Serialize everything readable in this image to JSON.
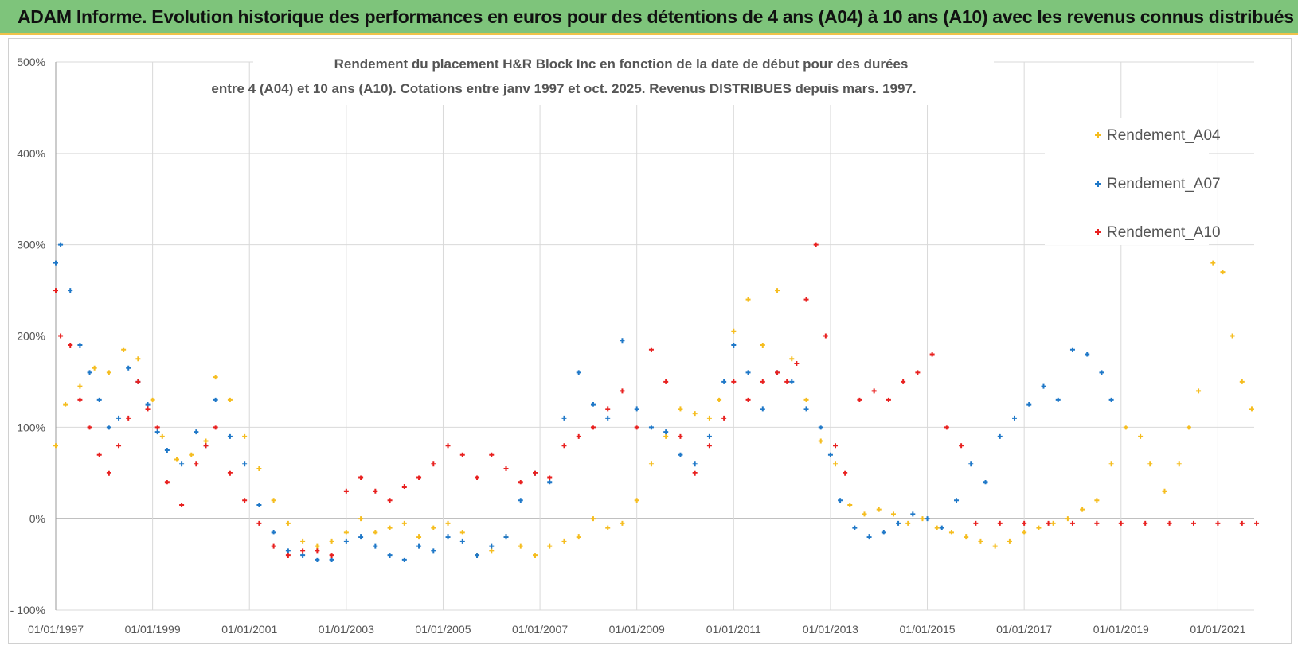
{
  "banner": {
    "title": "ADAM Informe. Evolution historique des performances en euros pour des détentions de 4 ans (A04) à 10 ans (A10) avec les revenus connus distribués"
  },
  "colors": {
    "banner_bg": "#7ec47b",
    "A04": "#f5bd1f",
    "A07": "#1f78c8",
    "A10": "#e8201f"
  },
  "chart_data": {
    "type": "scatter",
    "title_line1": "Rendement du placement H&R Block Inc en fonction de la date de début pour des durées",
    "title_line2": "entre 4 (A04) et 10 ans (A10). Cotations entre janv 1997 et oct. 2025. Revenus DISTRIBUES depuis mars. 1997.",
    "xlabel": "",
    "ylabel": "",
    "ylim": [
      -100,
      500
    ],
    "xlim": [
      1997.0,
      2021.75
    ],
    "y_ticks": [
      "500%",
      "400%",
      "300%",
      "200%",
      "100%",
      "0%",
      "- 100%"
    ],
    "y_tick_values": [
      500,
      400,
      300,
      200,
      100,
      0,
      -100
    ],
    "x_ticks": [
      "01/01/1997",
      "01/01/1999",
      "01/01/2001",
      "01/01/2003",
      "01/01/2005",
      "01/01/2007",
      "01/01/2009",
      "01/01/2011",
      "01/01/2013",
      "01/01/2015",
      "01/01/2017",
      "01/01/2019",
      "01/01/2021"
    ],
    "x_tick_values": [
      1997,
      1999,
      2001,
      2003,
      2005,
      2007,
      2009,
      2011,
      2013,
      2015,
      2017,
      2019,
      2021
    ],
    "legend": [
      "Rendement_A04",
      "Rendement_A07",
      "Rendement_A10"
    ],
    "legend_position": "top-right",
    "series": [
      {
        "name": "Rendement_A04",
        "x": [
          1997.0,
          1997.2,
          1997.5,
          1997.8,
          1998.1,
          1998.4,
          1998.7,
          1999.0,
          1999.2,
          1999.5,
          1999.8,
          2000.1,
          2000.3,
          2000.6,
          2000.9,
          2001.2,
          2001.5,
          2001.8,
          2002.1,
          2002.4,
          2002.7,
          2003.0,
          2003.3,
          2003.6,
          2003.9,
          2004.2,
          2004.5,
          2004.8,
          2005.1,
          2005.4,
          2005.7,
          2006.0,
          2006.3,
          2006.6,
          2006.9,
          2007.2,
          2007.5,
          2007.8,
          2008.1,
          2008.4,
          2008.7,
          2009.0,
          2009.3,
          2009.6,
          2009.9,
          2010.2,
          2010.5,
          2010.7,
          2011.0,
          2011.3,
          2011.6,
          2011.9,
          2012.2,
          2012.5,
          2012.8,
          2013.1,
          2013.4,
          2013.7,
          2014.0,
          2014.3,
          2014.6,
          2014.9,
          2015.2,
          2015.5,
          2015.8,
          2016.1,
          2016.4,
          2016.7,
          2017.0,
          2017.3,
          2017.6,
          2017.9,
          2018.2,
          2018.5,
          2018.8,
          2019.1,
          2019.4,
          2019.6,
          2019.9,
          2020.2,
          2020.4,
          2020.6,
          2020.9,
          2021.1,
          2021.3,
          2021.5,
          2021.7
        ],
        "y": [
          80,
          125,
          145,
          165,
          160,
          185,
          175,
          130,
          90,
          65,
          70,
          85,
          155,
          130,
          90,
          55,
          20,
          -5,
          -25,
          -30,
          -25,
          -15,
          0,
          -15,
          -10,
          -5,
          -20,
          -10,
          -5,
          -15,
          -40,
          -35,
          -20,
          -30,
          -40,
          -30,
          -25,
          -20,
          0,
          -10,
          -5,
          20,
          60,
          90,
          120,
          115,
          110,
          130,
          205,
          240,
          190,
          250,
          175,
          130,
          85,
          60,
          15,
          5,
          10,
          5,
          -5,
          0,
          -10,
          -15,
          -20,
          -25,
          -30,
          -25,
          -15,
          -10,
          -5,
          0,
          10,
          20,
          60,
          100,
          90,
          60,
          30,
          60,
          100,
          140,
          280,
          270,
          200,
          150,
          120
        ]
      },
      {
        "name": "Rendement_A07",
        "x": [
          1997.0,
          1997.1,
          1997.3,
          1997.5,
          1997.7,
          1997.9,
          1998.1,
          1998.3,
          1998.5,
          1998.7,
          1998.9,
          1999.1,
          1999.3,
          1999.6,
          1999.9,
          2000.1,
          2000.3,
          2000.6,
          2000.9,
          2001.2,
          2001.5,
          2001.8,
          2002.1,
          2002.4,
          2002.7,
          2003.0,
          2003.3,
          2003.6,
          2003.9,
          2004.2,
          2004.5,
          2004.8,
          2005.1,
          2005.4,
          2005.7,
          2006.0,
          2006.3,
          2006.6,
          2006.9,
          2007.2,
          2007.5,
          2007.8,
          2008.1,
          2008.4,
          2008.7,
          2009.0,
          2009.3,
          2009.6,
          2009.9,
          2010.2,
          2010.5,
          2010.8,
          2011.0,
          2011.3,
          2011.6,
          2011.9,
          2012.2,
          2012.5,
          2012.8,
          2013.0,
          2013.2,
          2013.5,
          2013.8,
          2014.1,
          2014.4,
          2014.7,
          2015.0,
          2015.3,
          2015.6,
          2015.9,
          2016.2,
          2016.5,
          2016.8,
          2017.1,
          2017.4,
          2017.7,
          2018.0,
          2018.3,
          2018.6,
          2018.8
        ],
        "y": [
          280,
          300,
          250,
          190,
          160,
          130,
          100,
          110,
          165,
          150,
          125,
          95,
          75,
          60,
          95,
          80,
          130,
          90,
          60,
          15,
          -15,
          -35,
          -40,
          -45,
          -45,
          -25,
          -20,
          -30,
          -40,
          -45,
          -30,
          -35,
          -20,
          -25,
          -40,
          -30,
          -20,
          20,
          50,
          40,
          110,
          160,
          125,
          110,
          195,
          120,
          100,
          95,
          70,
          60,
          90,
          150,
          190,
          160,
          120,
          160,
          150,
          120,
          100,
          70,
          20,
          -10,
          -20,
          -15,
          -5,
          5,
          0,
          -10,
          20,
          60,
          40,
          90,
          110,
          125,
          145,
          130,
          185,
          180,
          160,
          130
        ]
      },
      {
        "name": "Rendement_A10",
        "x": [
          1997.0,
          1997.1,
          1997.3,
          1997.5,
          1997.7,
          1997.9,
          1998.1,
          1998.3,
          1998.5,
          1998.7,
          1998.9,
          1999.1,
          1999.3,
          1999.6,
          1999.9,
          2000.1,
          2000.3,
          2000.6,
          2000.9,
          2001.2,
          2001.5,
          2001.8,
          2002.1,
          2002.4,
          2002.7,
          2003.0,
          2003.3,
          2003.6,
          2003.9,
          2004.2,
          2004.5,
          2004.8,
          2005.1,
          2005.4,
          2005.7,
          2006.0,
          2006.3,
          2006.6,
          2006.9,
          2007.2,
          2007.5,
          2007.8,
          2008.1,
          2008.4,
          2008.7,
          2009.0,
          2009.3,
          2009.6,
          2009.9,
          2010.2,
          2010.5,
          2010.8,
          2011.0,
          2011.3,
          2011.6,
          2011.9,
          2012.1,
          2012.3,
          2012.5,
          2012.7,
          2012.9,
          2013.1,
          2013.3,
          2013.6,
          2013.9,
          2014.2,
          2014.5,
          2014.8,
          2015.1,
          2015.4,
          2015.7,
          2016.0,
          2016.5,
          2017.0,
          2017.5,
          2018.0,
          2018.5,
          2019.0,
          2019.5,
          2020.0,
          2020.5,
          2021.0,
          2021.5,
          2021.8
        ],
        "y": [
          250,
          200,
          190,
          130,
          100,
          70,
          50,
          80,
          110,
          150,
          120,
          100,
          40,
          15,
          60,
          80,
          100,
          50,
          20,
          -5,
          -30,
          -40,
          -35,
          -35,
          -40,
          30,
          45,
          30,
          20,
          35,
          45,
          60,
          80,
          70,
          45,
          70,
          55,
          40,
          50,
          45,
          80,
          90,
          100,
          120,
          140,
          100,
          185,
          150,
          90,
          50,
          80,
          110,
          150,
          130,
          150,
          160,
          150,
          170,
          240,
          300,
          200,
          80,
          50,
          130,
          140,
          130,
          150,
          160,
          180,
          100,
          80,
          -5,
          -5,
          -5,
          -5,
          -5,
          -5,
          -5,
          -5,
          -5,
          -5,
          -5,
          -5,
          -5
        ]
      }
    ]
  }
}
